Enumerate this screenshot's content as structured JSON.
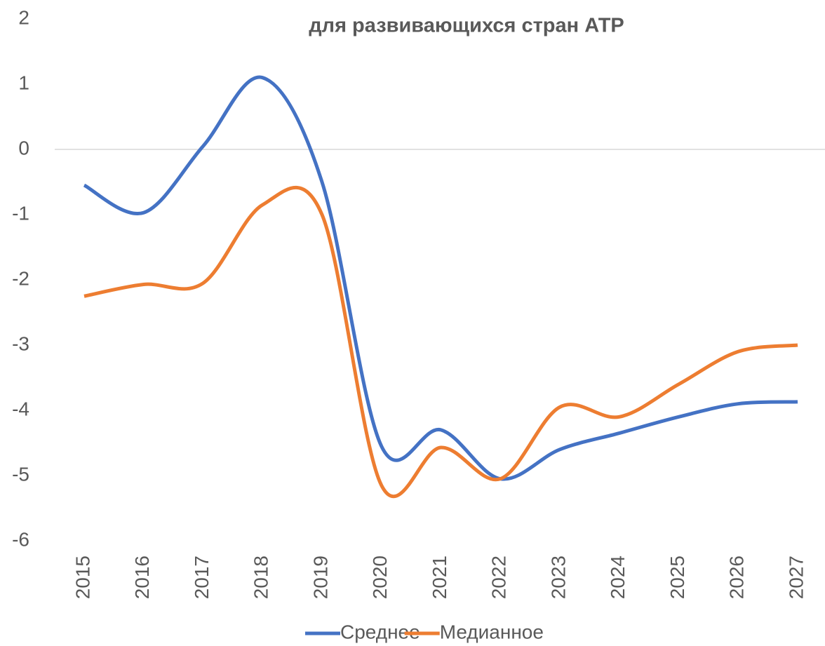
{
  "chart_data": {
    "type": "line",
    "title": "для развивающихся стран АТР",
    "categories": [
      "2015",
      "2016",
      "2017",
      "2018",
      "2019",
      "2020",
      "2021",
      "2022",
      "2023",
      "2024",
      "2025",
      "2026",
      "2027"
    ],
    "series": [
      {
        "name": "Среднее",
        "color": "#4472c4",
        "values": [
          -0.55,
          -0.97,
          0.05,
          1.1,
          -0.5,
          -4.55,
          -4.3,
          -5.05,
          -4.6,
          -4.35,
          -4.1,
          -3.9,
          -3.87
        ]
      },
      {
        "name": "Медианное",
        "color": "#ed7d31",
        "values": [
          -2.25,
          -2.07,
          -2.05,
          -0.85,
          -1.0,
          -5.15,
          -4.57,
          -5.05,
          -3.95,
          -4.1,
          -3.6,
          -3.1,
          -3.0
        ]
      }
    ],
    "ylim": [
      -6,
      2
    ],
    "yticks": [
      -6,
      -5,
      -4,
      -3,
      -2,
      -1,
      0,
      1,
      2
    ],
    "smooth": true
  }
}
